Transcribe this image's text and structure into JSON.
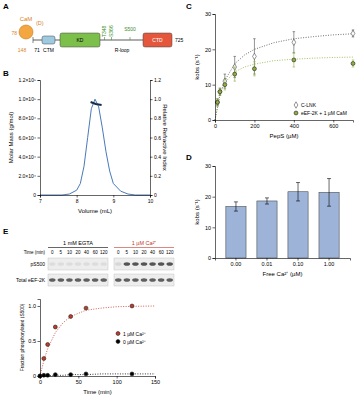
{
  "panel_labels": [
    "A",
    "B",
    "C",
    "D",
    "E"
  ],
  "domain_diagram": {
    "ligand": "CaM",
    "ligand_note": "(D)",
    "residues": [
      "78",
      "148",
      "71",
      "725"
    ],
    "domains": [
      "CTM",
      "KD",
      "R-loop",
      "CTD"
    ],
    "sites": [
      "T348",
      "S366",
      "S500"
    ]
  },
  "blot": {
    "conditions": [
      "1 mM EGTA",
      "1 µM Ca²⁺"
    ],
    "time_label": "Time (min)",
    "times": [
      0,
      5,
      10,
      20,
      40,
      60,
      120
    ],
    "rows": [
      "pS500",
      "Total eEF-2K"
    ]
  },
  "chart_data": [
    {
      "type": "line",
      "xlabel": "Volume (mL)",
      "ylabel": "Molar Mass (g/mol)",
      "y2label": "Relative Refractive Index",
      "xlim": [
        7,
        10
      ],
      "xticks": [
        7,
        8,
        9,
        10
      ],
      "ylim": [
        0,
        120000
      ],
      "yticks": [
        0,
        {
          "value": 20000,
          "label": "2.0×10⁴"
        },
        {
          "value": 40000,
          "label": "4.0×10⁴"
        },
        {
          "value": 60000,
          "label": "6.0×10⁴"
        },
        {
          "value": 80000,
          "label": "8.0×10⁴"
        },
        {
          "value": 100000,
          "label": "1.0×10⁵"
        },
        {
          "value": 120000,
          "label": "1.2×10⁵"
        }
      ],
      "y2lim": [
        0,
        1.2
      ],
      "y2ticks": [
        0,
        0.2,
        0.4,
        0.6,
        0.8,
        {
          "value": 1,
          "label": "1.0"
        },
        1.2
      ],
      "series": [
        {
          "color": "#4a7ab8",
          "axis": "y2",
          "x": [
            7.0,
            7.6,
            7.8,
            8.0,
            8.1,
            8.2,
            8.3,
            8.4,
            8.5,
            8.6,
            8.7,
            8.8,
            8.9,
            9.0,
            9.2,
            9.4,
            9.6,
            10.0
          ],
          "values": [
            0,
            0,
            0.01,
            0.05,
            0.12,
            0.3,
            0.6,
            0.9,
            1.0,
            0.92,
            0.7,
            0.45,
            0.25,
            0.12,
            0.04,
            0.01,
            0,
            0
          ]
        },
        {
          "color": "#1a2a4a",
          "x": [
            8.38,
            8.45,
            8.52,
            8.6,
            8.68
          ],
          "values": [
            97000,
            96000,
            95000,
            94500,
            94000
          ]
        }
      ]
    },
    {
      "type": "scatter",
      "xlabel": "PepS (µM)",
      "ylabel": "kobs (s⁻¹)",
      "xlim": [
        0,
        700
      ],
      "xticks": [
        0,
        200,
        400,
        600
      ],
      "ylim": [
        0,
        30
      ],
      "yticks": [
        0,
        10,
        20,
        30
      ],
      "legend": "bottom-right",
      "series": [
        {
          "name": "C-LNK",
          "color": "#4d4d4d",
          "marker": "diamond",
          "x": [
            12.5,
            25,
            50,
            100,
            200,
            400,
            700
          ],
          "values": [
            5,
            8,
            11,
            15,
            18,
            22,
            24.5
          ],
          "errors": [
            1,
            1,
            2,
            3,
            5,
            3,
            1
          ]
        },
        {
          "name": "eEF-2K + 1 µM CaM",
          "color": "#8fae3e",
          "marker": "circle",
          "x": [
            12.5,
            25,
            50,
            100,
            200,
            400,
            700
          ],
          "values": [
            5,
            8,
            10,
            13,
            14.5,
            17,
            16
          ],
          "errors": [
            1,
            1,
            1.5,
            2,
            2,
            2,
            1
          ]
        },
        {
          "type": "line",
          "line_style": "dotted",
          "color": "#4d4d4d",
          "x": [
            0,
            25,
            50,
            100,
            150,
            200,
            300,
            400,
            500,
            600,
            700
          ],
          "values": [
            0,
            7.0,
            11.2,
            15.9,
            18.4,
            20.0,
            21.9,
            23.0,
            23.6,
            24.1,
            24.4
          ]
        },
        {
          "type": "line",
          "line_style": "dotted",
          "color": "#8fae3e",
          "x": [
            0,
            25,
            50,
            100,
            150,
            200,
            300,
            400,
            500,
            600,
            700
          ],
          "values": [
            0,
            7.3,
            10.6,
            13.6,
            15.0,
            15.8,
            16.8,
            17.2,
            17.5,
            17.7,
            17.8
          ]
        }
      ]
    },
    {
      "type": "bar",
      "xlabel": "Free Ca²⁺ (µM)",
      "ylabel": "kobs (s⁻¹)",
      "categories": [
        "0.00",
        "0.01",
        "0.10",
        "1.00"
      ],
      "values": [
        16.8,
        18.6,
        21.6,
        21.4
      ],
      "errors": [
        1.5,
        1.0,
        3.0,
        4.5
      ],
      "color": "#9db4d8",
      "ylim": [
        0,
        30
      ],
      "yticks": [
        0,
        10,
        20,
        30
      ]
    },
    {
      "type": "scatter",
      "xlabel": "Time (min)",
      "ylabel": "Fraction phosphorylated (S500)",
      "xlim": [
        0,
        150
      ],
      "xticks": [
        0,
        50,
        100,
        150
      ],
      "ylim": [
        0,
        1.1
      ],
      "yticks": [
        0,
        0.5,
        {
          "value": 1,
          "label": "1.0"
        }
      ],
      "legend": "right",
      "series": [
        {
          "name": "1 µM Ca²⁺",
          "color": "#c0392b",
          "marker": "circle",
          "x": [
            0,
            5,
            10,
            20,
            40,
            60,
            120
          ],
          "values": [
            0,
            0.25,
            0.45,
            0.7,
            0.85,
            0.97,
            1.0
          ]
        },
        {
          "name": "0 µM Ca²⁺",
          "color": "#000000",
          "marker": "circle",
          "x": [
            0,
            5,
            10,
            20,
            40,
            60,
            120
          ],
          "values": [
            0,
            0.01,
            0.01,
            0.02,
            0.02,
            0.03,
            0.03
          ]
        },
        {
          "type": "line",
          "line_style": "dotted",
          "color": "#c0392b",
          "x": [
            0,
            5,
            10,
            20,
            30,
            40,
            60,
            80,
            100,
            120,
            150
          ],
          "values": [
            0,
            0.22,
            0.39,
            0.62,
            0.76,
            0.85,
            0.94,
            0.97,
            0.99,
            0.995,
            1.0
          ]
        },
        {
          "type": "line",
          "line_style": "dotted",
          "color": "#000000",
          "x": [
            0,
            5,
            10,
            20,
            30,
            40,
            60,
            80,
            100,
            120,
            150
          ],
          "values": [
            0,
            0,
            0,
            0.01,
            0.01,
            0.02,
            0.02,
            0.03,
            0.03,
            0.03,
            0.03
          ]
        }
      ]
    }
  ]
}
